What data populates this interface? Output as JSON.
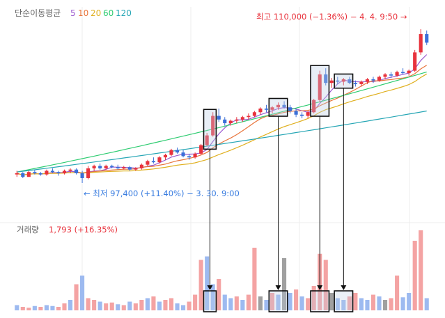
{
  "legend": {
    "title": "단순이동평균",
    "periods": [
      "5",
      "10",
      "20",
      "60",
      "120"
    ],
    "colors": [
      "#9b59d0",
      "#e8743b",
      "#e0b020",
      "#2ecc71",
      "#26a6b5"
    ]
  },
  "annotations": {
    "high": "최고 110,000 (−1.36%) − 4. 4. 9:50 →",
    "low": "← 최저 97,400 (+11.40%) − 3. 30. 9:00"
  },
  "volume_panel": {
    "title": "거래량",
    "value": "1,793 (+16.35%)"
  },
  "colors": {
    "up": "#e8323c",
    "down": "#3a6fd8",
    "vol_up": "#f4a3a3",
    "vol_down": "#9dbaf0",
    "vol_flat": "#a0a0a0",
    "high_text": "#e8323c",
    "low_text": "#3a7de0",
    "grid": "#ececec"
  },
  "chart_data": {
    "type": "candlestick",
    "price_high": 110000,
    "price_low": 97400,
    "candles": [
      [
        98.1,
        98.4,
        97.9,
        98.2
      ],
      [
        98.2,
        98.3,
        97.8,
        97.9
      ],
      [
        97.9,
        98.4,
        97.9,
        98.3
      ],
      [
        98.3,
        98.5,
        98.1,
        98.2
      ],
      [
        98.2,
        98.3,
        98.0,
        98.1
      ],
      [
        98.1,
        98.5,
        98.0,
        98.4
      ],
      [
        98.4,
        98.6,
        98.2,
        98.3
      ],
      [
        98.3,
        98.4,
        98.0,
        98.2
      ],
      [
        98.2,
        98.5,
        98.1,
        98.4
      ],
      [
        98.4,
        98.6,
        98.2,
        98.5
      ],
      [
        98.5,
        98.6,
        98.1,
        98.2
      ],
      [
        98.2,
        98.4,
        97.4,
        97.8
      ],
      [
        97.8,
        98.8,
        97.7,
        98.6
      ],
      [
        98.6,
        98.9,
        98.4,
        98.8
      ],
      [
        98.8,
        99.0,
        98.5,
        98.6
      ],
      [
        98.6,
        98.9,
        98.5,
        98.8
      ],
      [
        98.8,
        98.9,
        98.6,
        98.7
      ],
      [
        98.7,
        98.9,
        98.5,
        98.6
      ],
      [
        98.6,
        98.8,
        98.5,
        98.7
      ],
      [
        98.7,
        98.8,
        98.4,
        98.5
      ],
      [
        98.5,
        98.7,
        98.4,
        98.6
      ],
      [
        98.6,
        99.0,
        98.5,
        98.9
      ],
      [
        98.9,
        99.3,
        98.8,
        99.2
      ],
      [
        99.2,
        99.5,
        99.0,
        99.1
      ],
      [
        99.1,
        99.6,
        99.0,
        99.5
      ],
      [
        99.5,
        99.8,
        99.3,
        99.7
      ],
      [
        99.7,
        100.2,
        99.6,
        100.1
      ],
      [
        100.1,
        100.3,
        99.8,
        99.9
      ],
      [
        99.9,
        100.1,
        99.5,
        99.6
      ],
      [
        99.6,
        99.8,
        99.3,
        99.5
      ],
      [
        99.5,
        99.9,
        99.4,
        99.8
      ],
      [
        99.8,
        100.6,
        99.7,
        100.5
      ],
      [
        100.5,
        101.5,
        100.4,
        101.3
      ],
      [
        101.3,
        103.2,
        101.2,
        102.9
      ],
      [
        102.9,
        103.5,
        102.4,
        102.6
      ],
      [
        102.6,
        102.8,
        102.1,
        102.3
      ],
      [
        102.3,
        102.6,
        102.1,
        102.5
      ],
      [
        102.5,
        102.8,
        102.3,
        102.6
      ],
      [
        102.6,
        102.9,
        102.4,
        102.8
      ],
      [
        102.8,
        103.1,
        102.6,
        102.9
      ],
      [
        102.9,
        103.3,
        102.8,
        103.2
      ],
      [
        103.2,
        103.6,
        103.0,
        103.5
      ],
      [
        103.5,
        103.8,
        103.2,
        103.4
      ],
      [
        103.4,
        103.7,
        103.1,
        103.6
      ],
      [
        103.6,
        104.0,
        103.4,
        103.8
      ],
      [
        103.8,
        104.1,
        103.5,
        103.6
      ],
      [
        103.6,
        103.8,
        103.1,
        103.3
      ],
      [
        103.3,
        103.5,
        102.8,
        103.0
      ],
      [
        103.0,
        103.2,
        102.7,
        102.9
      ],
      [
        102.9,
        103.3,
        102.7,
        103.2
      ],
      [
        103.2,
        104.3,
        103.1,
        104.2
      ],
      [
        104.2,
        106.6,
        104.0,
        106.3
      ],
      [
        106.3,
        106.8,
        105.4,
        105.6
      ],
      [
        105.6,
        106.0,
        105.2,
        105.8
      ],
      [
        105.8,
        106.1,
        105.5,
        105.7
      ],
      [
        105.7,
        106.0,
        105.4,
        105.9
      ],
      [
        105.9,
        106.1,
        105.5,
        105.6
      ],
      [
        105.6,
        105.8,
        105.3,
        105.5
      ],
      [
        105.5,
        105.8,
        105.3,
        105.7
      ],
      [
        105.7,
        106.0,
        105.5,
        105.9
      ],
      [
        105.9,
        106.1,
        105.6,
        105.8
      ],
      [
        105.8,
        106.2,
        105.7,
        106.1
      ],
      [
        106.1,
        106.4,
        105.9,
        106.3
      ],
      [
        106.3,
        106.5,
        106.0,
        106.2
      ],
      [
        106.2,
        106.6,
        106.1,
        106.5
      ],
      [
        106.5,
        106.8,
        106.3,
        106.4
      ],
      [
        106.4,
        106.7,
        106.2,
        106.6
      ],
      [
        106.6,
        108.3,
        106.5,
        108.1
      ],
      [
        108.1,
        110.0,
        107.9,
        109.6
      ],
      [
        109.6,
        109.9,
        108.7,
        108.9
      ]
    ],
    "volume": [
      [
        6,
        -1
      ],
      [
        4,
        1
      ],
      [
        3,
        1
      ],
      [
        5,
        -1
      ],
      [
        4,
        1
      ],
      [
        6,
        -1
      ],
      [
        5,
        -1
      ],
      [
        4,
        1
      ],
      [
        8,
        1
      ],
      [
        12,
        -1
      ],
      [
        30,
        1
      ],
      [
        40,
        -1
      ],
      [
        14,
        1
      ],
      [
        12,
        1
      ],
      [
        10,
        -1
      ],
      [
        8,
        1
      ],
      [
        9,
        1
      ],
      [
        7,
        -1
      ],
      [
        6,
        1
      ],
      [
        10,
        -1
      ],
      [
        8,
        1
      ],
      [
        12,
        1
      ],
      [
        14,
        -1
      ],
      [
        16,
        1
      ],
      [
        10,
        -1
      ],
      [
        12,
        1
      ],
      [
        14,
        1
      ],
      [
        8,
        -1
      ],
      [
        6,
        -1
      ],
      [
        10,
        1
      ],
      [
        18,
        1
      ],
      [
        58,
        1
      ],
      [
        62,
        -1
      ],
      [
        30,
        -1
      ],
      [
        36,
        1
      ],
      [
        18,
        -1
      ],
      [
        14,
        -1
      ],
      [
        16,
        1
      ],
      [
        12,
        -1
      ],
      [
        18,
        1
      ],
      [
        72,
        1
      ],
      [
        16,
        0
      ],
      [
        12,
        -1
      ],
      [
        20,
        1
      ],
      [
        18,
        -1
      ],
      [
        60,
        0
      ],
      [
        20,
        -1
      ],
      [
        24,
        1
      ],
      [
        16,
        -1
      ],
      [
        14,
        1
      ],
      [
        28,
        1
      ],
      [
        65,
        1
      ],
      [
        58,
        1
      ],
      [
        20,
        0
      ],
      [
        14,
        -1
      ],
      [
        12,
        -1
      ],
      [
        16,
        1
      ],
      [
        20,
        1
      ],
      [
        14,
        -1
      ],
      [
        12,
        -1
      ],
      [
        18,
        1
      ],
      [
        16,
        -1
      ],
      [
        12,
        0
      ],
      [
        14,
        1
      ],
      [
        40,
        1
      ],
      [
        15,
        -1
      ],
      [
        20,
        -1
      ],
      [
        80,
        1
      ],
      [
        92,
        1
      ],
      [
        14,
        -1
      ]
    ]
  }
}
